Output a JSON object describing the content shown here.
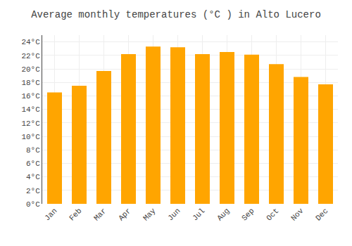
{
  "chart_data": {
    "type": "bar",
    "title": "Average monthly temperatures (°C ) in Alto Lucero",
    "categories": [
      "Jan",
      "Feb",
      "Mar",
      "Apr",
      "May",
      "Jun",
      "Jul",
      "Aug",
      "Sep",
      "Oct",
      "Nov",
      "Dec"
    ],
    "values": [
      16.5,
      17.5,
      19.7,
      22.2,
      23.3,
      23.2,
      22.2,
      22.5,
      22.1,
      20.7,
      18.8,
      17.7
    ],
    "color": "#FFA500",
    "ylim": [
      0,
      25
    ],
    "yticks": [
      {
        "value": 0,
        "label": "0°C"
      },
      {
        "value": 2,
        "label": "2°C"
      },
      {
        "value": 4,
        "label": "4°C"
      },
      {
        "value": 6,
        "label": "6°C"
      },
      {
        "value": 8,
        "label": "8°C"
      },
      {
        "value": 10,
        "label": "10°C"
      },
      {
        "value": 12,
        "label": "12°C"
      },
      {
        "value": 14,
        "label": "14°C"
      },
      {
        "value": 16,
        "label": "16°C"
      },
      {
        "value": 18,
        "label": "18°C"
      },
      {
        "value": 20,
        "label": "20°C"
      },
      {
        "value": 22,
        "label": "22°C"
      },
      {
        "value": 24,
        "label": "24°C"
      }
    ],
    "grid": true
  }
}
